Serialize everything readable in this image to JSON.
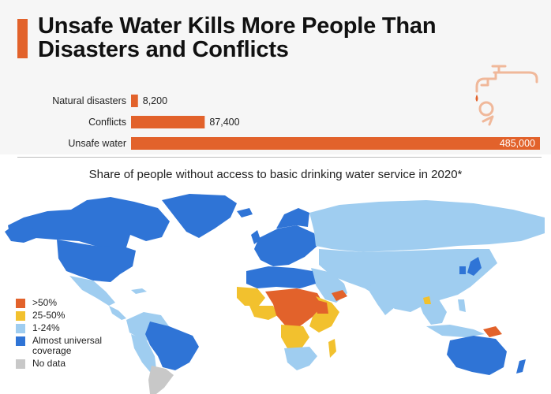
{
  "title": "Unsafe Water Kills More People Than Disasters and Conflicts",
  "chart_data": [
    {
      "type": "bar",
      "orientation": "horizontal",
      "categories": [
        "Natural disasters",
        "Conflicts",
        "Unsafe water"
      ],
      "values": [
        8200,
        87400,
        485000
      ],
      "value_labels": [
        "8,200",
        "87,400",
        "485,000"
      ],
      "color": "#e2622b"
    },
    {
      "type": "map",
      "title": "Share of people without access to basic drinking water service in 2020*",
      "legend": [
        {
          "label": ">50%",
          "color": "#e2622b"
        },
        {
          "label": "25-50%",
          "color": "#f2c12e"
        },
        {
          "label": "1-24%",
          "color": "#9fcdf0"
        },
        {
          "label": "Almost universal coverage",
          "color": "#2f74d6"
        },
        {
          "label": "No data",
          "color": "#c8c8c8"
        }
      ],
      "legend_position": "bottom-left"
    }
  ],
  "colors": {
    "accent": "#e2622b",
    "low": "#9fcdf0",
    "universal": "#2f74d6",
    "mid": "#f2c12e",
    "nodata": "#c8c8c8"
  },
  "decorations": {
    "illustration": "faucet-icon"
  }
}
